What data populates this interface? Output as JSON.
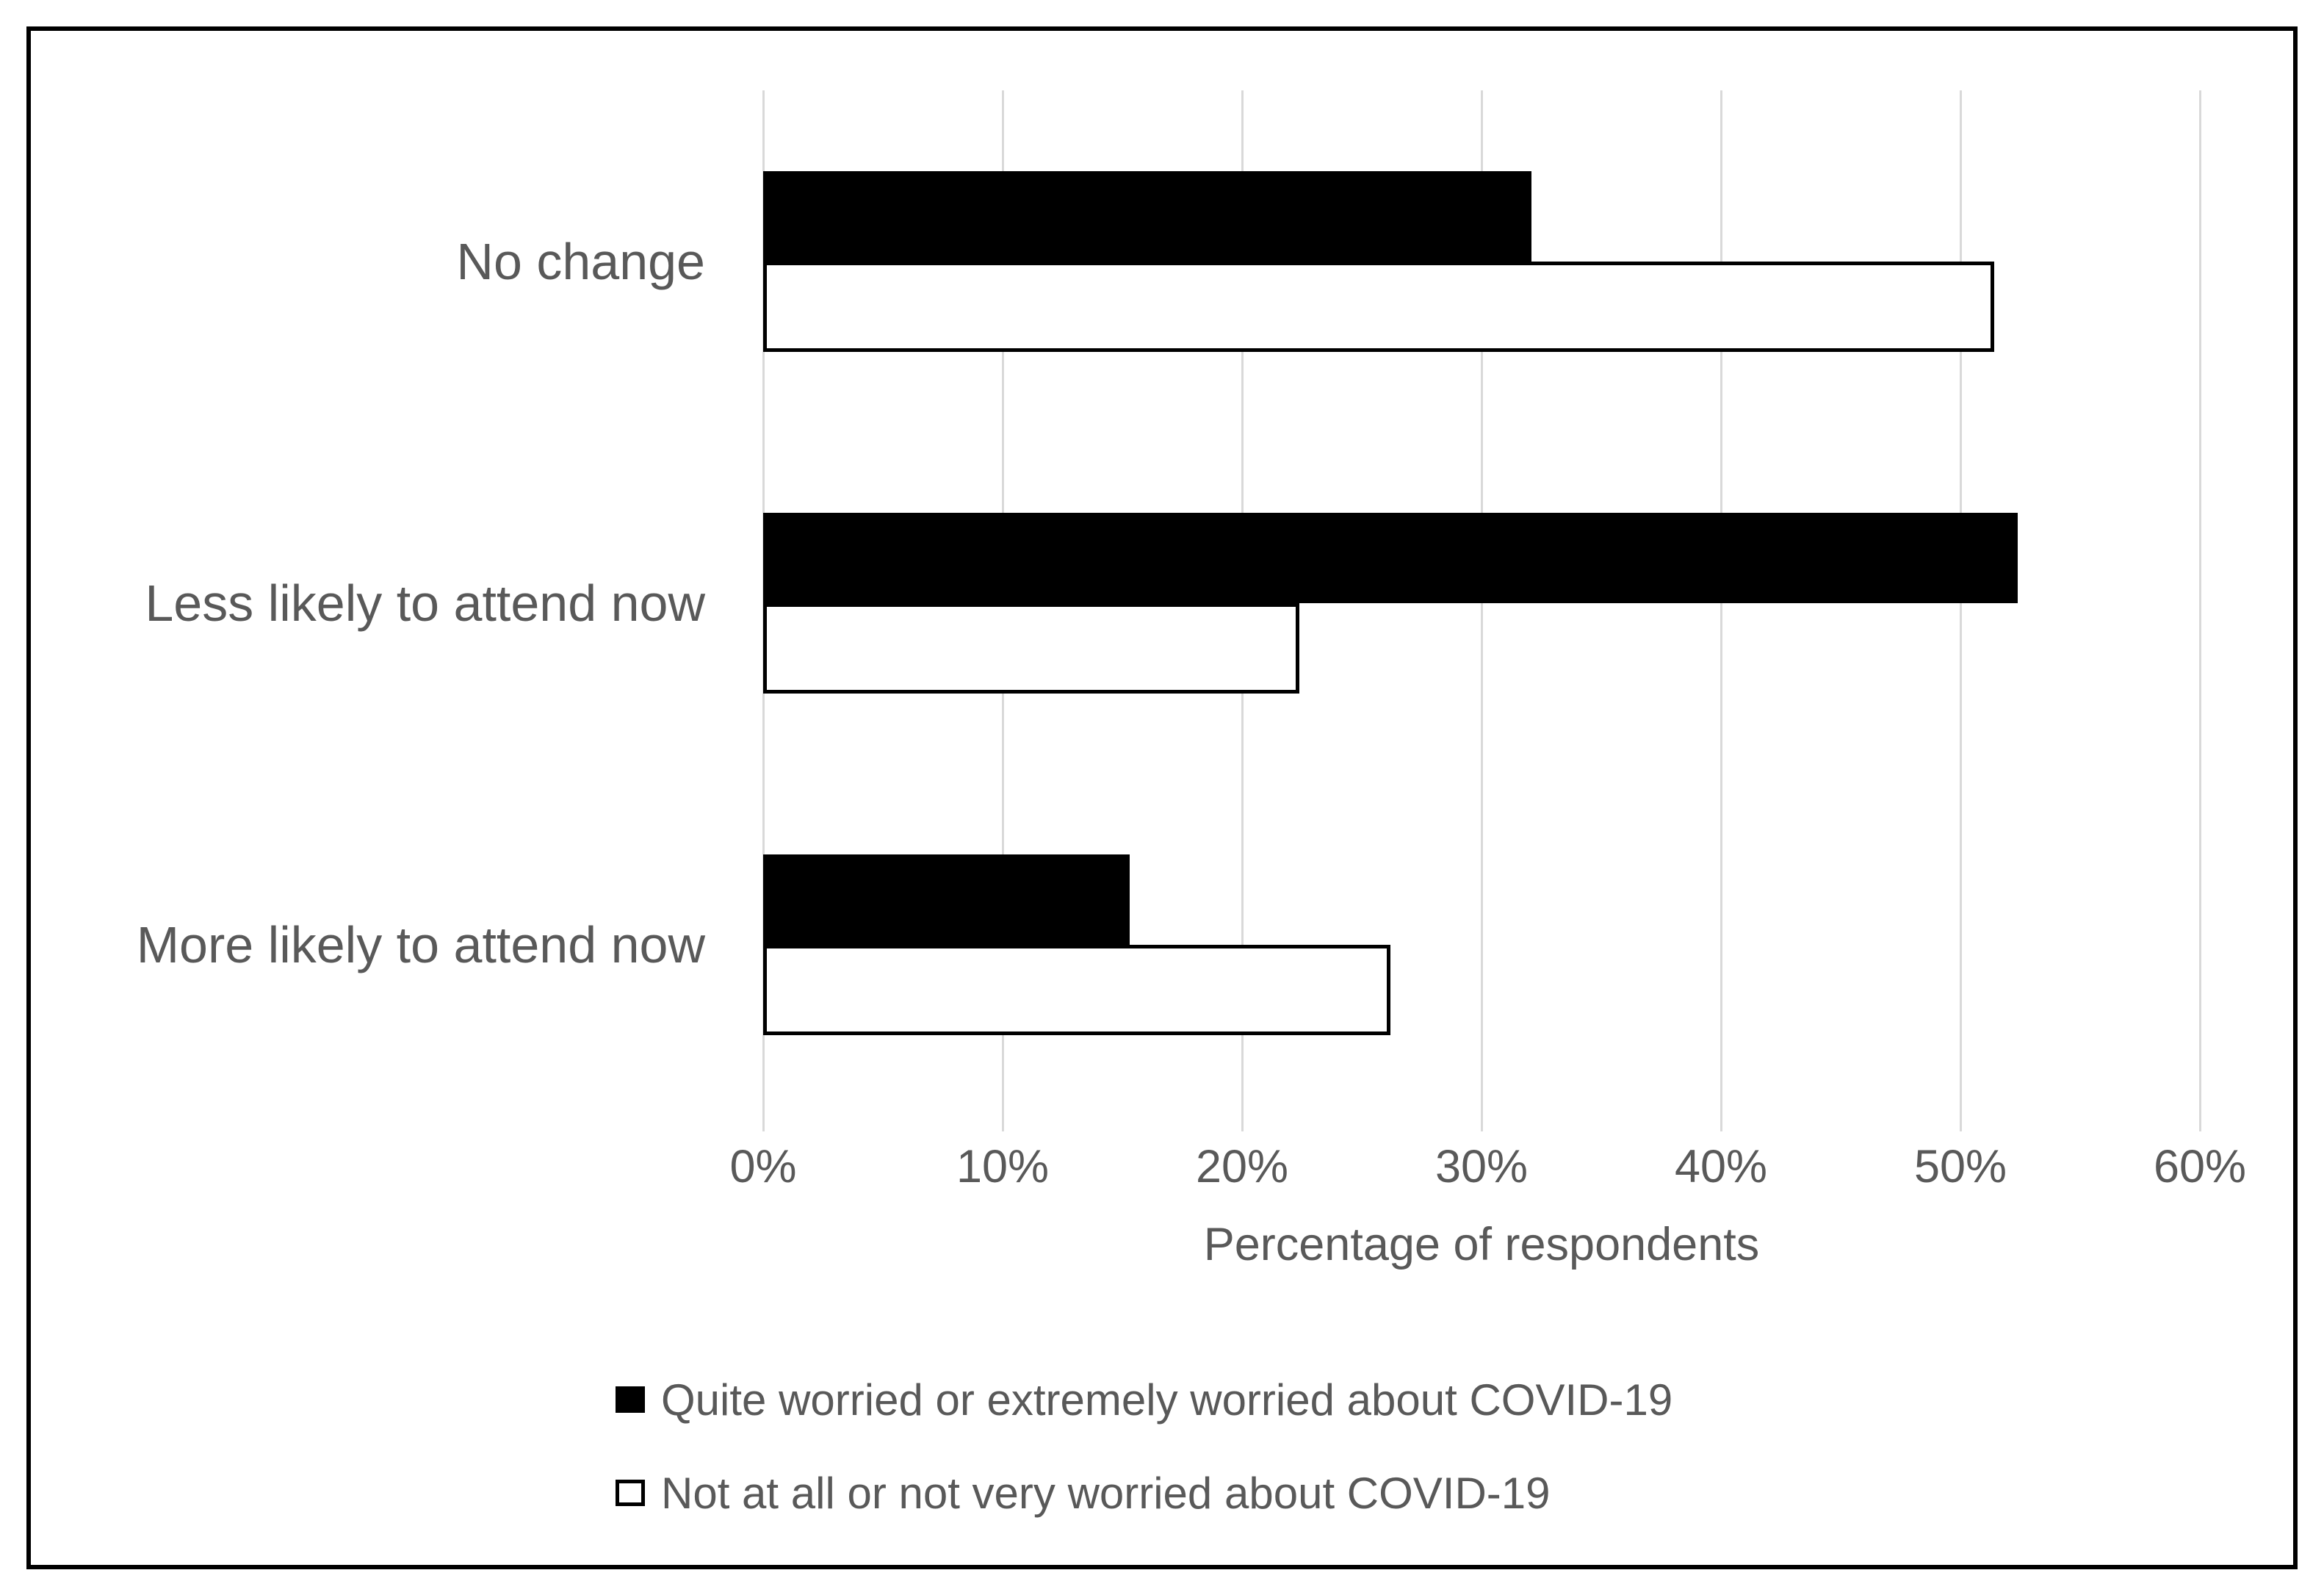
{
  "chart_data": {
    "type": "bar",
    "orientation": "horizontal",
    "title": "",
    "categories": [
      "No change",
      "Less likely to attend now",
      "More likely to attend now"
    ],
    "series": [
      {
        "name": "Quite worried or extremely worried about COVID-19",
        "values": [
          32.1,
          52.4,
          15.3
        ],
        "fill": "#000000",
        "stroke": "#000000"
      },
      {
        "name": "Not at all or not very worried about COVID-19",
        "values": [
          51.4,
          22.4,
          26.2
        ],
        "fill": "#FFFFFF",
        "stroke": "#000000"
      }
    ],
    "xlabel": "Percentage of respondents",
    "xlim": [
      0,
      60
    ],
    "x_tick_step": 10,
    "x_tick_labels": [
      "0%",
      "10%",
      "20%",
      "30%",
      "40%",
      "50%",
      "60%"
    ],
    "grid": true,
    "legend_position": "bottom-left"
  },
  "colors": {
    "text": "#595959",
    "gridline": "#D9D9D9",
    "frame_border": "#000000",
    "background": "#FFFFFF",
    "bar_black": "#000000",
    "bar_white": "#FFFFFF"
  }
}
